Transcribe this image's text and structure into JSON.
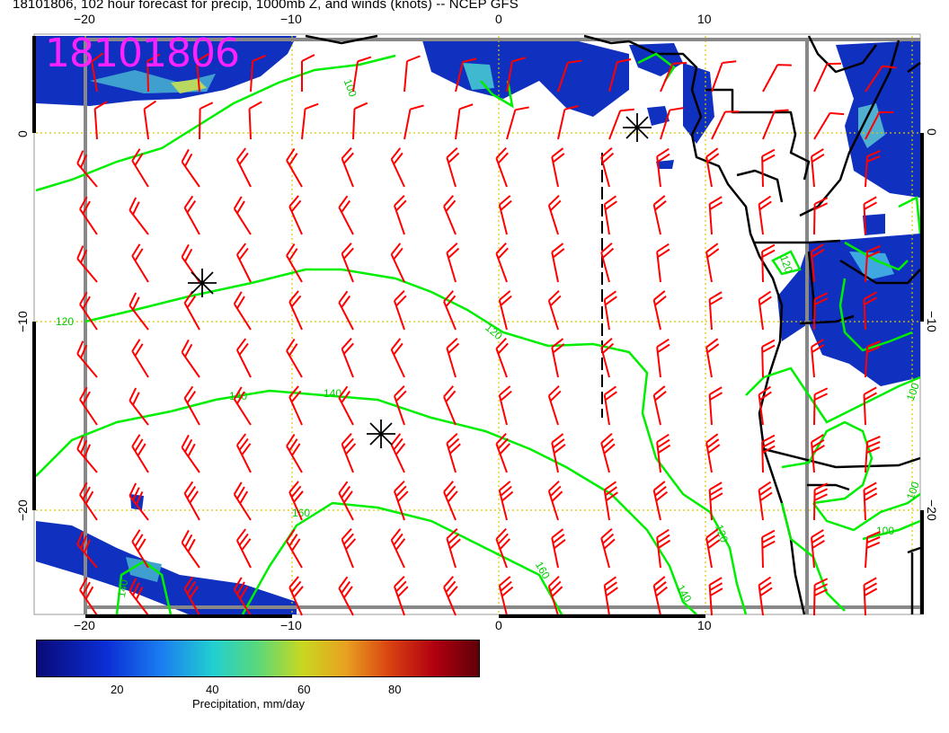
{
  "header": {
    "title": "18101806, 102 hour forecast for precip, 1000mb Z, and winds (knots) -- NCEP GFS",
    "stamp": "18101806"
  },
  "axes": {
    "lon_ticks": [
      "−20",
      "−10",
      "0",
      "10"
    ],
    "lat_ticks": [
      "0",
      "−10",
      "−20"
    ]
  },
  "contours": {
    "labels": [
      "100",
      "120",
      "120",
      "140",
      "140",
      "140",
      "160",
      "160",
      "140",
      "120",
      "100",
      "120",
      "100",
      "100"
    ]
  },
  "colorbar": {
    "ticks": [
      "20",
      "40",
      "60",
      "80"
    ],
    "label": "Precipitation, mm/day"
  },
  "colors": {
    "wind_barbs": "#ff0000",
    "contours": "#00ee00",
    "coast": "#000000",
    "grid": "#d8c800",
    "stamp": "#ff22ff"
  }
}
